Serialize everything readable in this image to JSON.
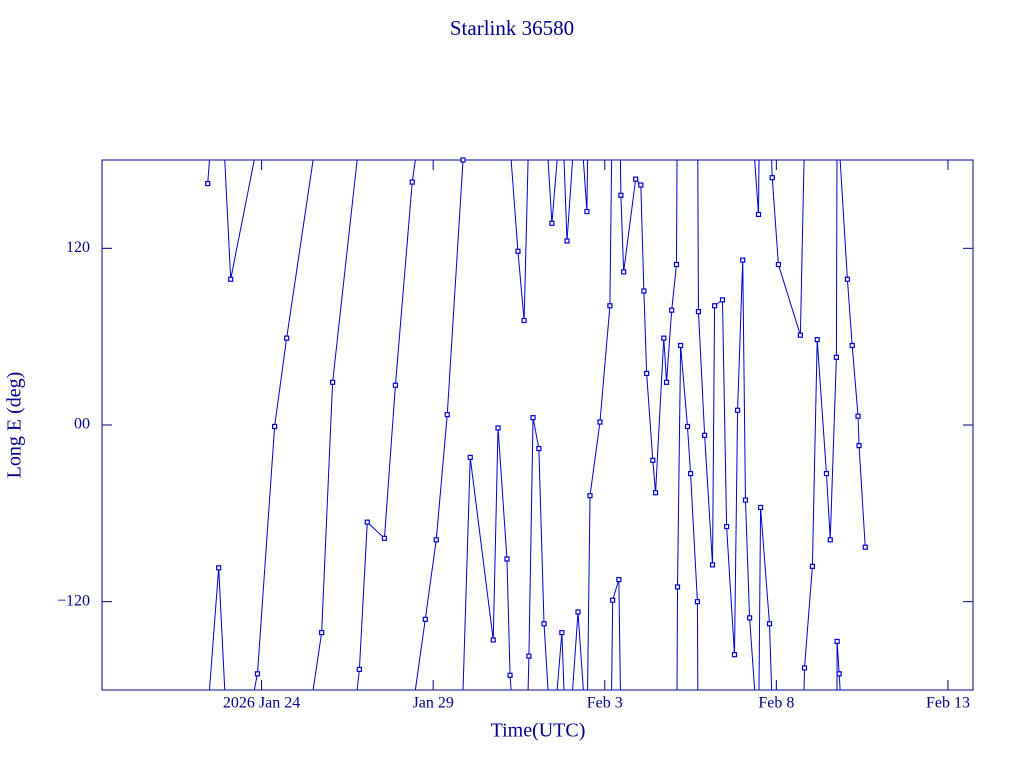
{
  "chart_data": {
    "type": "line",
    "title": "Starlink 36580",
    "x_label": "Time(UTC)",
    "y_label": "Long E (deg)",
    "xlim": [
      19.35,
      44.73
    ],
    "ylim": [
      -180,
      180
    ],
    "xticks": [
      {
        "value": 24,
        "label": "2026 Jan 24"
      },
      {
        "value": 29,
        "label": "Jan 29"
      },
      {
        "value": 34,
        "label": "Feb  3"
      },
      {
        "value": 39,
        "label": "Feb  8"
      },
      {
        "value": 44,
        "label": "Feb 13"
      }
    ],
    "yticks": [
      {
        "value": -120,
        "label": "−120"
      },
      {
        "value": 0,
        "label": "00"
      },
      120
    ],
    "wrap": true,
    "markers": true,
    "series": [
      {
        "name": "Long E",
        "color": "#0000cc",
        "x": [
          22.43,
          22.75,
          23.1,
          23.88,
          24.38,
          24.73,
          25.75,
          26.07,
          26.85,
          27.08,
          27.58,
          27.9,
          28.39,
          28.77,
          29.09,
          29.41,
          29.87,
          30.08,
          30.75,
          30.89,
          31.15,
          31.24,
          31.47,
          31.65,
          31.79,
          31.91,
          32.08,
          32.23,
          32.46,
          32.75,
          32.9,
          33.22,
          33.48,
          33.57,
          33.86,
          34.15,
          34.23,
          34.41,
          34.47,
          34.55,
          34.9,
          35.05,
          35.14,
          35.22,
          35.4,
          35.48,
          35.72,
          35.8,
          35.95,
          36.09,
          36.12,
          36.21,
          36.41,
          36.5,
          36.7,
          36.73,
          36.91,
          37.14,
          37.2,
          37.43,
          37.55,
          37.78,
          37.87,
          38.02,
          38.1,
          38.22,
          38.48,
          38.54,
          38.8,
          38.88,
          39.06,
          39.7,
          39.82,
          40.05,
          40.19,
          40.46,
          40.57,
          40.75,
          40.77,
          40.83,
          41.07,
          41.21,
          41.38,
          41.41,
          41.59
        ],
        "values": [
          164,
          -97,
          99,
          -169,
          -1,
          59,
          -141,
          29,
          -166,
          -66,
          -77,
          27,
          165,
          -132,
          -78,
          7,
          180,
          -22,
          -146,
          -2,
          -91,
          -170,
          118,
          71,
          -157,
          5,
          -16,
          -135,
          137,
          -141,
          125,
          -127,
          145,
          -48,
          2,
          81,
          -119,
          -105,
          156,
          104,
          167,
          163,
          91,
          35,
          -24,
          -46,
          59,
          29,
          78,
          109,
          -110,
          54,
          -1,
          -33,
          -120,
          77,
          -7,
          -95,
          81,
          85,
          -69,
          -156,
          10,
          112,
          -51,
          -131,
          143,
          -56,
          -135,
          168,
          109,
          61,
          -165,
          -96,
          58,
          -33,
          -78,
          46,
          -147,
          -169,
          99,
          54,
          6,
          -14,
          -83
        ]
      }
    ]
  }
}
